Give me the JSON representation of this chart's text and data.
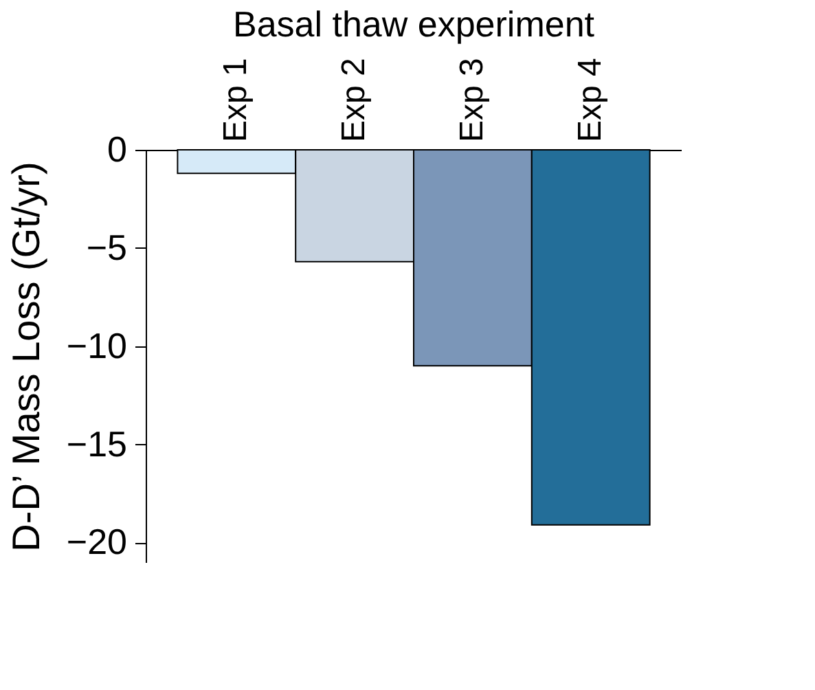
{
  "chart_data": {
    "type": "bar",
    "title": "Basal thaw experiment",
    "ylabel": "D-D’ Mass Loss (Gt/yr)",
    "categories": [
      "Exp 1",
      "Exp 2",
      "Exp 3",
      "Exp 4"
    ],
    "values": [
      -1.2,
      -5.7,
      -11.0,
      -19.1
    ],
    "colors": [
      "#d6eaf8",
      "#c9d5e2",
      "#7b96b8",
      "#236e99"
    ],
    "ylim": [
      -21,
      0
    ],
    "yticks": [
      0,
      -5,
      -10,
      -15,
      -20
    ],
    "grid": false
  }
}
